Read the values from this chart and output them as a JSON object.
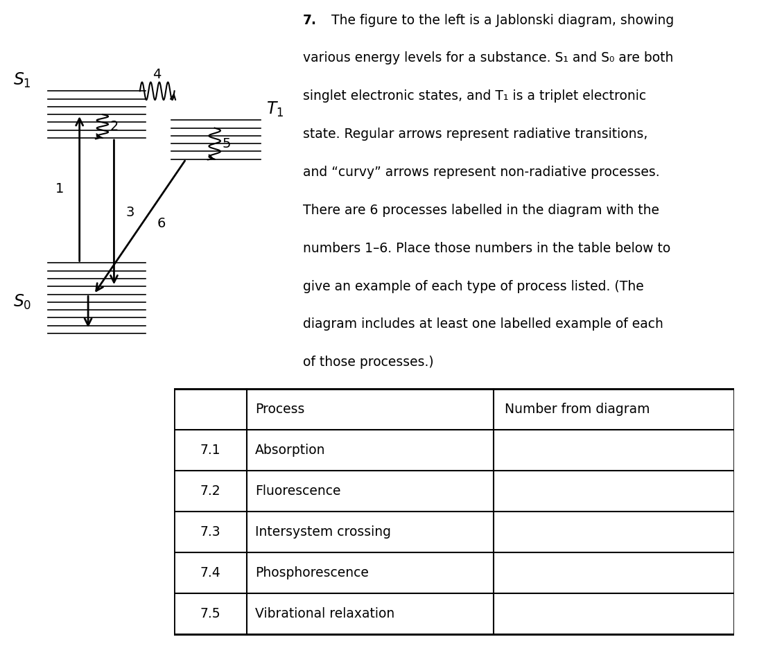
{
  "bg_color": "#ffffff",
  "description_bold": "7.",
  "description_rest": " The figure to the left is a Jablonski diagram, showing\nvarious energy levels for a substance. S₁ and S₀ are both\nsinglet electronic states, and T₁ is a triplet electronic\nstate. Regular arrows represent radiative transitions,\nand “curvy” arrows represent non-radiative processes.\nThere are 6 processes labelled in the diagram with the\nnumbers 1–6. Place those numbers in the table below to\ngive an example of each type of process listed. (The\ndiagram includes at least one labelled example of each\nof those processes.)",
  "table_rows": [
    [
      "",
      "Process",
      "Number from diagram"
    ],
    [
      "7.1",
      "Absorption",
      ""
    ],
    [
      "7.2",
      "Fluorescence",
      ""
    ],
    [
      "7.3",
      "Intersystem crossing",
      ""
    ],
    [
      "7.4",
      "Phosphorescence",
      ""
    ],
    [
      "7.5",
      "Vibrational relaxation",
      ""
    ]
  ],
  "font_size_label": 17,
  "font_size_text": 13.5,
  "font_size_table": 13.5,
  "font_size_number": 14
}
